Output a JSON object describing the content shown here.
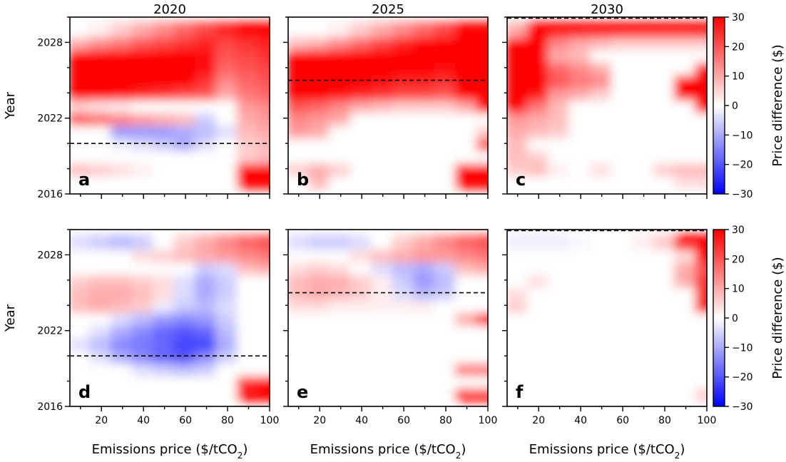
{
  "chart_data": {
    "type": "heatmap",
    "column_titles": [
      "2020",
      "2025",
      "2030"
    ],
    "xlabel_prefix": "Emissions price ($/tCO",
    "xlabel_sub": "2",
    "xlabel_suffix": ")",
    "ylabel": "Year",
    "xlim": [
      5,
      100
    ],
    "ylim": [
      2016,
      2030
    ],
    "x_ticks": [
      20,
      40,
      60,
      80,
      100
    ],
    "y_ticks": [
      2016,
      2022,
      2028
    ],
    "y_tick_labels": [
      "2016",
      "2022",
      "2028"
    ],
    "colorbar": {
      "label": "Price difference ($)",
      "range": [
        -30,
        30
      ],
      "ticks": [
        -30,
        -20,
        -10,
        0,
        10,
        20,
        30
      ],
      "tick_labels": [
        "−30",
        "−20",
        "−10",
        "0",
        "10",
        "20",
        "30"
      ],
      "low_color": "#0000ff",
      "mid_color": "#ffffff",
      "high_color": "#ff0000"
    },
    "x_grid": [
      10,
      20,
      30,
      40,
      50,
      60,
      70,
      80,
      90,
      100
    ],
    "y_grid": [
      2017,
      2018,
      2019,
      2020,
      2021,
      2022,
      2023,
      2024,
      2025,
      2026,
      2027,
      2028,
      2029
    ],
    "panels": [
      {
        "letter": "a",
        "row": 0,
        "col": 0,
        "dashed_year": 2020,
        "values": [
          [
            0,
            0,
            0,
            0,
            0,
            0,
            0,
            0,
            30,
            30
          ],
          [
            8,
            6,
            4,
            2,
            0,
            0,
            0,
            0,
            30,
            30
          ],
          [
            0,
            0,
            0,
            0,
            0,
            0,
            0,
            0,
            6,
            8
          ],
          [
            0,
            0,
            -2,
            -4,
            -6,
            -10,
            -4,
            0,
            6,
            8
          ],
          [
            0,
            0,
            -12,
            -12,
            -12,
            -10,
            -8,
            -4,
            8,
            10
          ],
          [
            20,
            18,
            15,
            12,
            10,
            8,
            -6,
            0,
            10,
            12
          ],
          [
            5,
            3,
            2,
            0,
            0,
            0,
            0,
            0,
            12,
            14
          ],
          [
            30,
            30,
            28,
            26,
            24,
            22,
            20,
            10,
            16,
            18
          ],
          [
            30,
            30,
            30,
            30,
            30,
            30,
            24,
            14,
            18,
            20
          ],
          [
            30,
            30,
            30,
            30,
            30,
            30,
            28,
            18,
            20,
            22
          ],
          [
            30,
            30,
            30,
            30,
            30,
            30,
            28,
            20,
            22,
            24
          ],
          [
            10,
            14,
            16,
            20,
            22,
            24,
            26,
            22,
            24,
            26
          ],
          [
            0,
            2,
            6,
            10,
            14,
            18,
            22,
            26,
            30,
            30
          ]
        ]
      },
      {
        "letter": "b",
        "row": 0,
        "col": 1,
        "dashed_year": 2025,
        "values": [
          [
            0,
            8,
            0,
            0,
            0,
            0,
            0,
            0,
            30,
            30
          ],
          [
            6,
            10,
            6,
            0,
            0,
            0,
            0,
            0,
            30,
            30
          ],
          [
            0,
            0,
            0,
            0,
            0,
            0,
            0,
            0,
            0,
            0
          ],
          [
            0,
            0,
            0,
            0,
            0,
            0,
            0,
            0,
            0,
            20
          ],
          [
            12,
            10,
            0,
            0,
            0,
            0,
            0,
            0,
            0,
            6
          ],
          [
            14,
            12,
            10,
            0,
            0,
            0,
            0,
            0,
            0,
            0
          ],
          [
            20,
            18,
            14,
            10,
            8,
            6,
            6,
            6,
            10,
            30
          ],
          [
            30,
            30,
            28,
            26,
            24,
            22,
            22,
            20,
            30,
            30
          ],
          [
            30,
            30,
            30,
            30,
            28,
            26,
            26,
            24,
            30,
            30
          ],
          [
            30,
            30,
            30,
            30,
            30,
            30,
            30,
            28,
            30,
            30
          ],
          [
            30,
            30,
            30,
            30,
            30,
            30,
            30,
            30,
            30,
            30
          ],
          [
            8,
            10,
            14,
            18,
            22,
            26,
            30,
            30,
            30,
            30
          ],
          [
            0,
            0,
            2,
            6,
            10,
            14,
            18,
            22,
            30,
            30
          ]
        ]
      },
      {
        "letter": "c",
        "row": 0,
        "col": 2,
        "dashed_year": 2030,
        "values": [
          [
            0,
            0,
            0,
            0,
            0,
            0,
            0,
            0,
            4,
            4
          ],
          [
            6,
            8,
            2,
            0,
            4,
            0,
            0,
            6,
            8,
            8
          ],
          [
            8,
            6,
            0,
            0,
            0,
            0,
            0,
            0,
            0,
            0
          ],
          [
            8,
            0,
            0,
            0,
            0,
            0,
            0,
            0,
            0,
            0
          ],
          [
            10,
            8,
            6,
            0,
            0,
            0,
            0,
            0,
            0,
            0
          ],
          [
            12,
            10,
            8,
            0,
            0,
            0,
            0,
            0,
            0,
            0
          ],
          [
            30,
            16,
            8,
            0,
            0,
            0,
            0,
            0,
            0,
            30
          ],
          [
            30,
            28,
            12,
            10,
            6,
            0,
            0,
            0,
            30,
            30
          ],
          [
            30,
            30,
            20,
            16,
            14,
            0,
            0,
            0,
            30,
            30
          ],
          [
            30,
            30,
            18,
            14,
            10,
            0,
            0,
            0,
            0,
            30
          ],
          [
            30,
            30,
            10,
            8,
            0,
            0,
            0,
            0,
            0,
            0
          ],
          [
            30,
            30,
            14,
            10,
            8,
            6,
            6,
            6,
            6,
            6
          ],
          [
            10,
            30,
            30,
            30,
            30,
            30,
            30,
            30,
            30,
            30
          ]
        ]
      },
      {
        "letter": "d",
        "row": 1,
        "col": 0,
        "dashed_year": 2020,
        "values": [
          [
            0,
            0,
            0,
            0,
            0,
            0,
            0,
            0,
            30,
            30
          ],
          [
            0,
            0,
            0,
            0,
            0,
            0,
            0,
            0,
            24,
            28
          ],
          [
            0,
            0,
            0,
            -4,
            -6,
            -8,
            -6,
            0,
            0,
            0
          ],
          [
            0,
            -4,
            -10,
            -14,
            -18,
            -20,
            -14,
            -6,
            0,
            0
          ],
          [
            -4,
            -8,
            -14,
            -16,
            -18,
            -22,
            -22,
            -10,
            0,
            0
          ],
          [
            0,
            -4,
            -10,
            -14,
            -18,
            -20,
            -18,
            -8,
            0,
            0
          ],
          [
            0,
            0,
            -4,
            -8,
            -12,
            -14,
            -12,
            -6,
            0,
            0
          ],
          [
            8,
            10,
            8,
            6,
            -2,
            -6,
            -8,
            -4,
            0,
            0
          ],
          [
            8,
            10,
            10,
            8,
            4,
            -4,
            -10,
            -6,
            0,
            0
          ],
          [
            6,
            8,
            8,
            6,
            4,
            -4,
            -10,
            -6,
            0,
            0
          ],
          [
            0,
            0,
            0,
            0,
            0,
            0,
            -6,
            -4,
            8,
            10
          ],
          [
            0,
            0,
            0,
            4,
            6,
            8,
            10,
            12,
            14,
            16
          ],
          [
            -4,
            -6,
            -8,
            -6,
            0,
            6,
            10,
            14,
            18,
            20
          ]
        ]
      },
      {
        "letter": "e",
        "row": 1,
        "col": 1,
        "dashed_year": 2025,
        "values": [
          [
            0,
            0,
            0,
            0,
            0,
            0,
            0,
            0,
            30,
            30
          ],
          [
            0,
            0,
            0,
            0,
            0,
            0,
            0,
            0,
            0,
            0
          ],
          [
            0,
            0,
            0,
            0,
            0,
            0,
            0,
            0,
            16,
            16
          ],
          [
            0,
            0,
            0,
            0,
            0,
            0,
            0,
            0,
            0,
            0
          ],
          [
            0,
            0,
            0,
            0,
            0,
            0,
            0,
            0,
            0,
            0
          ],
          [
            0,
            0,
            0,
            0,
            0,
            0,
            0,
            0,
            0,
            0
          ],
          [
            0,
            0,
            0,
            0,
            0,
            0,
            0,
            0,
            10,
            30
          ],
          [
            4,
            4,
            2,
            2,
            2,
            2,
            2,
            0,
            0,
            0
          ],
          [
            8,
            10,
            8,
            6,
            2,
            -4,
            -8,
            -6,
            0,
            0
          ],
          [
            8,
            10,
            10,
            6,
            2,
            -6,
            -12,
            -8,
            0,
            0
          ],
          [
            4,
            6,
            4,
            0,
            -4,
            -8,
            -10,
            -6,
            8,
            10
          ],
          [
            0,
            0,
            0,
            4,
            8,
            10,
            12,
            12,
            14,
            16
          ],
          [
            -4,
            -6,
            -6,
            -4,
            0,
            6,
            10,
            14,
            18,
            20
          ]
        ]
      },
      {
        "letter": "f",
        "row": 1,
        "col": 2,
        "dashed_year": 2030,
        "values": [
          [
            0,
            0,
            0,
            0,
            0,
            0,
            0,
            0,
            0,
            6
          ],
          [
            0,
            0,
            0,
            0,
            0,
            0,
            0,
            0,
            0,
            0
          ],
          [
            0,
            0,
            0,
            0,
            0,
            0,
            0,
            0,
            0,
            0
          ],
          [
            0,
            0,
            0,
            0,
            0,
            0,
            0,
            0,
            0,
            0
          ],
          [
            0,
            0,
            0,
            0,
            0,
            0,
            0,
            0,
            0,
            0
          ],
          [
            0,
            0,
            0,
            0,
            0,
            0,
            0,
            0,
            0,
            0
          ],
          [
            0,
            0,
            0,
            0,
            0,
            0,
            0,
            0,
            0,
            0
          ],
          [
            6,
            0,
            0,
            0,
            0,
            0,
            0,
            0,
            0,
            30
          ],
          [
            4,
            0,
            0,
            0,
            0,
            0,
            0,
            0,
            0,
            24
          ],
          [
            0,
            4,
            0,
            0,
            0,
            0,
            0,
            0,
            10,
            24
          ],
          [
            0,
            0,
            0,
            0,
            0,
            0,
            0,
            0,
            10,
            20
          ],
          [
            0,
            0,
            0,
            0,
            0,
            0,
            0,
            0,
            4,
            30
          ],
          [
            -2,
            -2,
            -2,
            -1,
            0,
            0,
            2,
            6,
            30,
            30
          ]
        ]
      }
    ]
  }
}
